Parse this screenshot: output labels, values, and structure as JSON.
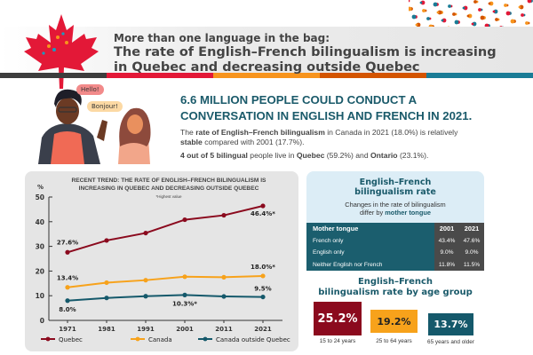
{
  "header": {
    "subtitle": "More than one language in the bag:",
    "title_line1": "The rate of English–French bilingualism is increasing",
    "title_line2": "in Quebec and decreasing outside Quebec",
    "stripe_colors": [
      "#3d3d3d",
      "#e31837",
      "#f7941d",
      "#d35400",
      "#1a7c96"
    ]
  },
  "illustration": {
    "bubble_1": "Hello!",
    "bubble_2": "Bonjour!"
  },
  "summary": {
    "headline_line1": "6.6 MILLION PEOPLE COULD CONDUCT A",
    "headline_line2": "CONVERSATION IN ENGLISH AND FRENCH IN 2021.",
    "p1_a": "The ",
    "p1_b": "rate of English–French bilingualism",
    "p1_c": " in Canada in 2021 (18.0%) is relatively ",
    "p1_d": "stable",
    "p1_e": " compared with 2001 (17.7%).",
    "p2_a": "4 out of 5 bilingual",
    "p2_b": " people live in ",
    "p2_c": "Quebec",
    "p2_d": " (59.2%) and ",
    "p2_e": "Ontario",
    "p2_f": " (23.1%)."
  },
  "chart_data": {
    "type": "line",
    "title_line1": "RECENT TREND: THE RATE OF ENGLISH–FRENCH BILINGUALISM IS",
    "title_line2": "INCREASING IN QUEBEC AND DECREASING OUTSIDE QUEBEC",
    "note": "*Highest value",
    "ylabel": "%",
    "ylim": [
      0,
      50
    ],
    "yticks": [
      "0",
      "10",
      "20",
      "30",
      "40",
      "50"
    ],
    "x": [
      "1971",
      "1981",
      "1991",
      "2001",
      "2011",
      "2021"
    ],
    "grid": false,
    "legend": "bottom",
    "series": [
      {
        "name": "Quebec",
        "color": "#8b0a1e",
        "values": [
          27.6,
          32.4,
          35.4,
          40.8,
          42.6,
          46.4
        ],
        "labels": {
          "0": "27.6%",
          "5": "46.4%*"
        }
      },
      {
        "name": "Canada",
        "color": "#f7a21b",
        "values": [
          13.4,
          15.3,
          16.3,
          17.7,
          17.5,
          18.0
        ],
        "labels": {
          "0": "13.4%",
          "5": "18.0%*"
        }
      },
      {
        "name": "Canada outside Quebec",
        "color": "#15596b",
        "values": [
          8.0,
          9.1,
          9.8,
          10.3,
          9.7,
          9.5
        ],
        "labels": {
          "0": "8.0%",
          "3": "10.3%*",
          "5": "9.5%"
        }
      }
    ]
  },
  "mother_tongue": {
    "title_line1": "English–French",
    "title_line2": "bilingualism rate",
    "sub_a": "Changes in the rate of bilingualism",
    "sub_b": "differ by ",
    "sub_c": "mother tongue",
    "headers": [
      "Mother tongue",
      "2001",
      "2021"
    ],
    "rows": [
      [
        "French only",
        "43.4%",
        "47.6%"
      ],
      [
        "English only",
        "9.0%",
        "9.0%"
      ],
      [
        "Neither English nor French",
        "11.8%",
        "11.5%"
      ]
    ]
  },
  "age_group": {
    "title_line1": "English–French",
    "title_line2": "bilingualism rate by age group",
    "groups": [
      {
        "value": "25.2%",
        "label": "15 to 24 years",
        "color": "#8b0a1e"
      },
      {
        "value": "19.2%",
        "label": "25 to 64 years",
        "color": "#f7a21b"
      },
      {
        "value": "13.7%",
        "label": "65 years and older",
        "color": "#15596b"
      }
    ]
  }
}
